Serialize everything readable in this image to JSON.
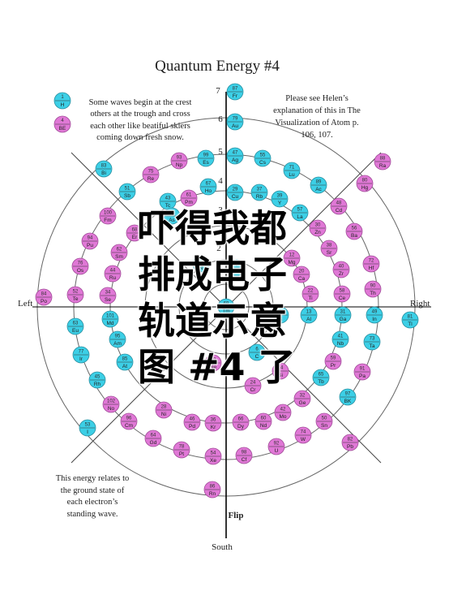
{
  "title": "Quantum Energy #4",
  "notes": {
    "top_left": [
      "Some waves begin at the crest",
      "others at the trough and cross",
      "each other like beatiful skiers",
      "coming down fresh snow."
    ],
    "top_right": [
      "Please see Helen’s",
      "explanation of this in The",
      "Visualization of  Atom p.",
      "106, 107."
    ],
    "bottom_left": [
      "This energy relates to",
      "the ground state of",
      "each electron’s",
      "standing wave."
    ]
  },
  "directions": {
    "left": "Left",
    "right": "Right",
    "south": "South",
    "flip": "Flip"
  },
  "axis_numbers": [
    "7",
    "6",
    "5",
    "4",
    "3",
    "2",
    "1"
  ],
  "legend": [
    {
      "num": "1",
      "sym": "H",
      "color": "cyan"
    },
    {
      "num": "4",
      "sym": "BE",
      "color": "magenta"
    }
  ],
  "colors": {
    "cyan": "#3ccfe6",
    "magenta": "#e078d6",
    "ring": "#666666",
    "axis": "#000000"
  },
  "overlay_lines": [
    "吓得我都",
    "排成电子",
    "轨道示意",
    "图 #4 了"
  ],
  "elements": [
    {
      "num": "87",
      "sym": "Fr",
      "c": "cyan"
    },
    {
      "num": "79",
      "sym": "Au",
      "c": "cyan"
    },
    {
      "num": "47",
      "sym": "Ag",
      "c": "cyan"
    },
    {
      "num": "29",
      "sym": "Cu",
      "c": "cyan"
    },
    {
      "num": "55",
      "sym": "Cs",
      "c": "cyan"
    },
    {
      "num": "37",
      "sym": "Rb",
      "c": "cyan"
    },
    {
      "num": "39",
      "sym": "Y",
      "c": "cyan"
    },
    {
      "num": "71",
      "sym": "Lu",
      "c": "cyan"
    },
    {
      "num": "57",
      "sym": "La",
      "c": "cyan"
    },
    {
      "num": "89",
      "sym": "Ac",
      "c": "cyan"
    },
    {
      "num": "99",
      "sym": "Es",
      "c": "cyan"
    },
    {
      "num": "67",
      "sym": "Ho",
      "c": "cyan"
    },
    {
      "num": "93",
      "sym": "Np",
      "c": "magenta"
    },
    {
      "num": "75",
      "sym": "Re",
      "c": "magenta"
    },
    {
      "num": "61",
      "sym": "Pm",
      "c": "magenta"
    },
    {
      "num": "43",
      "sym": "Tc",
      "c": "cyan"
    },
    {
      "num": "33",
      "sym": "As",
      "c": "cyan"
    },
    {
      "num": "83",
      "sym": "Bi",
      "c": "cyan"
    },
    {
      "num": "51",
      "sym": "Sb",
      "c": "cyan"
    },
    {
      "num": "88",
      "sym": "Ra",
      "c": "magenta"
    },
    {
      "num": "80",
      "sym": "Hg",
      "c": "magenta"
    },
    {
      "num": "48",
      "sym": "Cd",
      "c": "magenta"
    },
    {
      "num": "56",
      "sym": "Ba",
      "c": "magenta"
    },
    {
      "num": "30",
      "sym": "Zn",
      "c": "magenta"
    },
    {
      "num": "38",
      "sym": "Sr",
      "c": "magenta"
    },
    {
      "num": "72",
      "sym": "Hf",
      "c": "magenta"
    },
    {
      "num": "40",
      "sym": "Zr",
      "c": "magenta"
    },
    {
      "num": "12",
      "sym": "Mg",
      "c": "magenta"
    },
    {
      "num": "20",
      "sym": "Ca",
      "c": "magenta"
    },
    {
      "num": "22",
      "sym": "Ti",
      "c": "magenta"
    },
    {
      "num": "58",
      "sym": "Ce",
      "c": "magenta"
    },
    {
      "num": "90",
      "sym": "Th",
      "c": "magenta"
    },
    {
      "num": "100",
      "sym": "Fm",
      "c": "magenta"
    },
    {
      "num": "68",
      "sym": "Er",
      "c": "magenta"
    },
    {
      "num": "94",
      "sym": "Pu",
      "c": "magenta"
    },
    {
      "num": "62",
      "sym": "Sm",
      "c": "magenta"
    },
    {
      "num": "76",
      "sym": "Os",
      "c": "magenta"
    },
    {
      "num": "44",
      "sym": "Ru",
      "c": "magenta"
    },
    {
      "num": "84",
      "sym": "Po",
      "c": "magenta"
    },
    {
      "num": "52",
      "sym": "Te",
      "c": "magenta"
    },
    {
      "num": "34",
      "sym": "Se",
      "c": "magenta"
    },
    {
      "num": "7",
      "sym": "N",
      "c": "cyan"
    },
    {
      "num": "3",
      "sym": "Li",
      "c": "cyan"
    },
    {
      "num": "13",
      "sym": "Al",
      "c": "cyan"
    },
    {
      "num": "5",
      "sym": "B",
      "c": "cyan"
    },
    {
      "num": "31",
      "sym": "Ga",
      "c": "cyan"
    },
    {
      "num": "49",
      "sym": "In",
      "c": "cyan"
    },
    {
      "num": "81",
      "sym": "Tl",
      "c": "cyan"
    },
    {
      "num": "41",
      "sym": "Nb",
      "c": "cyan"
    },
    {
      "num": "73",
      "sym": "Ta",
      "c": "cyan"
    },
    {
      "num": "59",
      "sym": "Pr",
      "c": "magenta"
    },
    {
      "num": "91",
      "sym": "Pa",
      "c": "magenta"
    },
    {
      "num": "65",
      "sym": "Tb",
      "c": "cyan"
    },
    {
      "num": "97",
      "sym": "BK",
      "c": "cyan"
    },
    {
      "num": "14",
      "sym": "Si",
      "c": "magenta"
    },
    {
      "num": "32",
      "sym": "Ge",
      "c": "magenta"
    },
    {
      "num": "50",
      "sym": "Sn",
      "c": "magenta"
    },
    {
      "num": "82",
      "sym": "Pb",
      "c": "magenta"
    },
    {
      "num": "6",
      "sym": "C",
      "c": "cyan"
    },
    {
      "num": "24",
      "sym": "Cr",
      "c": "magenta"
    },
    {
      "num": "42",
      "sym": "Mo",
      "c": "magenta"
    },
    {
      "num": "74",
      "sym": "W",
      "c": "magenta"
    },
    {
      "num": "60",
      "sym": "Nd",
      "c": "magenta"
    },
    {
      "num": "92",
      "sym": "U",
      "c": "magenta"
    },
    {
      "num": "66",
      "sym": "Dy",
      "c": "magenta"
    },
    {
      "num": "98",
      "sym": "Cf",
      "c": "magenta"
    },
    {
      "num": "36",
      "sym": "Kr",
      "c": "magenta"
    },
    {
      "num": "54",
      "sym": "Xe",
      "c": "magenta"
    },
    {
      "num": "86",
      "sym": "Rn",
      "c": "magenta"
    },
    {
      "num": "10",
      "sym": "Ne",
      "c": "magenta"
    },
    {
      "num": "46",
      "sym": "Pd",
      "c": "magenta"
    },
    {
      "num": "78",
      "sym": "Pt",
      "c": "magenta"
    },
    {
      "num": "28",
      "sym": "Ni",
      "c": "magenta"
    },
    {
      "num": "64",
      "sym": "Gd",
      "c": "magenta"
    },
    {
      "num": "96",
      "sym": "Cm",
      "c": "magenta"
    },
    {
      "num": "102",
      "sym": "No",
      "c": "magenta"
    },
    {
      "num": "53",
      "sym": "I",
      "c": "cyan"
    },
    {
      "num": "85",
      "sym": "At",
      "c": "cyan"
    },
    {
      "num": "45",
      "sym": "Rh",
      "c": "cyan"
    },
    {
      "num": "77",
      "sym": "Ir",
      "c": "cyan"
    },
    {
      "num": "95",
      "sym": "Am",
      "c": "cyan"
    },
    {
      "num": "63",
      "sym": "Eu",
      "c": "cyan"
    },
    {
      "num": "101",
      "sym": "Md",
      "c": "cyan"
    },
    {
      "num": "69",
      "sym": "Tm",
      "c": "cyan"
    }
  ]
}
